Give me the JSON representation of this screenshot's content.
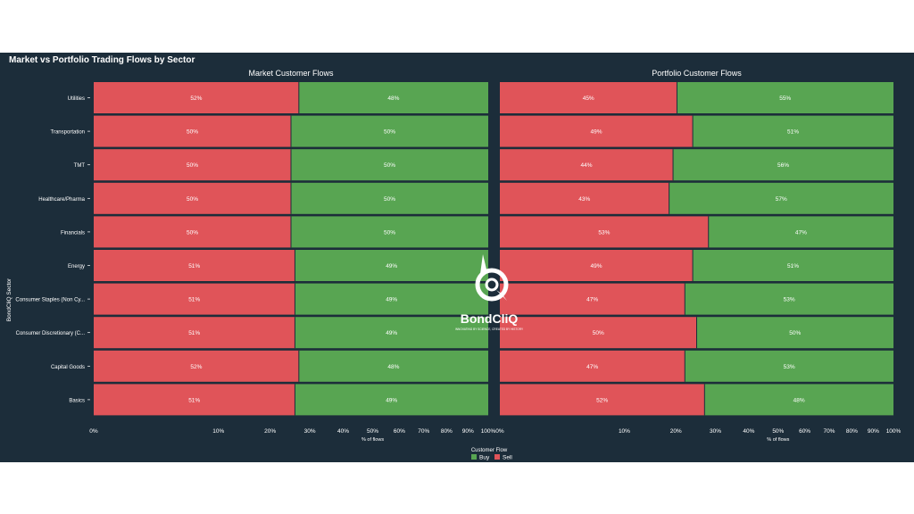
{
  "header": {
    "title": "Market vs Portfolio Trading Flows by Sector"
  },
  "y_axis_title": "BondCliQ Sector",
  "x_axis_title": "% of flows",
  "legend": {
    "title": "Customer Flow",
    "buy_label": "Buy",
    "sell_label": "Sell"
  },
  "watermark": {
    "brand": "BondCliQ",
    "tagline": "INNOVATING BY SCIENCE, CREATED BY HISTORY"
  },
  "colors": {
    "sell": "#e05459",
    "buy": "#58a552",
    "background": "#1c2d3a",
    "separator": "#1c2d3a"
  },
  "x_ticks": [
    "0%",
    "10%",
    "20%",
    "30%",
    "40%",
    "50%",
    "60%",
    "70%",
    "80%",
    "90%",
    "100%"
  ],
  "chart_data": [
    {
      "type": "bar",
      "orientation": "horizontal",
      "stacked": true,
      "normalized_percent": true,
      "title": "Market Customer Flows",
      "xlabel": "% of flows",
      "ylabel": "BondCliQ Sector",
      "categories": [
        "Utilities",
        "Transportation",
        "TMT",
        "Healthcare/Pharma",
        "Financials",
        "Energy",
        "Consumer Staples (Non Cy...",
        "Consumer Discretionary (C...",
        "Capital Goods",
        "Basics"
      ],
      "series": [
        {
          "name": "Sell",
          "values": [
            52,
            50,
            50,
            50,
            50,
            51,
            51,
            51,
            52,
            51
          ],
          "labels": [
            "52%",
            "50%",
            "50%",
            "50%",
            "50%",
            "51%",
            "51%",
            "51%",
            "52%",
            "51%"
          ]
        },
        {
          "name": "Buy",
          "values": [
            48,
            50,
            50,
            50,
            50,
            49,
            49,
            49,
            48,
            49
          ],
          "labels": [
            "48%",
            "50%",
            "50%",
            "50%",
            "50%",
            "49%",
            "49%",
            "49%",
            "48%",
            "49%"
          ]
        }
      ],
      "xlim": [
        0,
        100
      ],
      "legend": "bottom-center"
    },
    {
      "type": "bar",
      "orientation": "horizontal",
      "stacked": true,
      "normalized_percent": true,
      "title": "Portfolio Customer Flows",
      "xlabel": "% of flows",
      "categories": [
        "Utilities",
        "Transportation",
        "TMT",
        "Healthcare/Pharma",
        "Financials",
        "Energy",
        "Consumer Staples (Non Cy...",
        "Consumer Discretionary (C...",
        "Capital Goods",
        "Basics"
      ],
      "series": [
        {
          "name": "Sell",
          "values": [
            45,
            49,
            44,
            43,
            53,
            49,
            47,
            50,
            47,
            52
          ],
          "labels": [
            "45%",
            "49%",
            "44%",
            "43%",
            "53%",
            "49%",
            "47%",
            "50%",
            "47%",
            "52%"
          ]
        },
        {
          "name": "Buy",
          "values": [
            55,
            51,
            56,
            57,
            47,
            51,
            53,
            50,
            53,
            48
          ],
          "labels": [
            "55%",
            "51%",
            "56%",
            "57%",
            "47%",
            "51%",
            "53%",
            "50%",
            "53%",
            "48%"
          ]
        }
      ],
      "xlim": [
        0,
        100
      ],
      "legend": "bottom-center"
    }
  ]
}
